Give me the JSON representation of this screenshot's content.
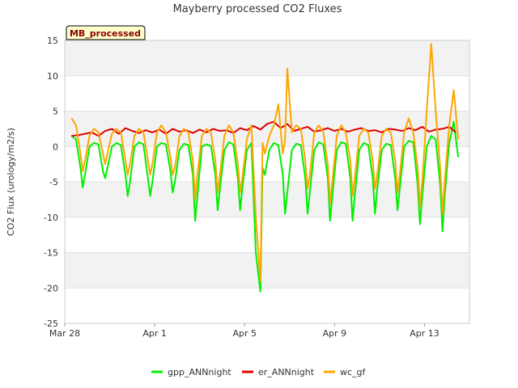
{
  "chart_data": {
    "type": "line",
    "title": "Mayberry processed CO2 Fluxes",
    "ylabel": "CO2 Flux (urology/m2/s)",
    "xlabel": "",
    "badge": "MB_processed",
    "xlim": [
      0,
      18
    ],
    "ylim": [
      -25,
      15
    ],
    "yticks": [
      -25,
      -20,
      -15,
      -10,
      -5,
      0,
      5,
      10,
      15
    ],
    "xticks": [
      {
        "day": 0,
        "label": "Mar 28"
      },
      {
        "day": 4,
        "label": "Apr 1"
      },
      {
        "day": 8,
        "label": "Apr 5"
      },
      {
        "day": 12,
        "label": "Apr 9"
      },
      {
        "day": 16,
        "label": "Apr 13"
      }
    ],
    "grid": true,
    "legend_position": "bottom",
    "x_units": "days since Mar 28",
    "series": [
      {
        "name": "gpp_ANNnight",
        "color": "#00ee00",
        "x": [
          0.3,
          0.5,
          0.7,
          0.8,
          0.9,
          1.1,
          1.3,
          1.5,
          1.7,
          1.8,
          1.9,
          2.1,
          2.3,
          2.5,
          2.7,
          2.8,
          2.9,
          3.1,
          3.3,
          3.5,
          3.7,
          3.8,
          3.9,
          4.1,
          4.3,
          4.5,
          4.7,
          4.8,
          4.9,
          5.1,
          5.3,
          5.5,
          5.7,
          5.8,
          5.9,
          6.1,
          6.3,
          6.5,
          6.7,
          6.8,
          6.9,
          7.1,
          7.3,
          7.5,
          7.7,
          7.8,
          7.9,
          8.1,
          8.3,
          8.5,
          8.7,
          8.8,
          8.9,
          9.1,
          9.3,
          9.5,
          9.7,
          9.8,
          9.9,
          10.1,
          10.3,
          10.5,
          10.7,
          10.8,
          10.9,
          11.1,
          11.3,
          11.5,
          11.7,
          11.8,
          11.9,
          12.1,
          12.3,
          12.5,
          12.7,
          12.8,
          12.9,
          13.1,
          13.3,
          13.5,
          13.7,
          13.8,
          13.9,
          14.1,
          14.3,
          14.5,
          14.7,
          14.8,
          14.9,
          15.1,
          15.3,
          15.5,
          15.7,
          15.8,
          15.9,
          16.1,
          16.3,
          16.5,
          16.7,
          16.8,
          16.9,
          17.1,
          17.3,
          17.5
        ],
        "y": [
          1.5,
          1.0,
          -3.0,
          -5.8,
          -4.0,
          0.0,
          0.5,
          0.3,
          -3.5,
          -4.5,
          -3.0,
          0.0,
          0.5,
          0.2,
          -4.0,
          -7.0,
          -5.0,
          0.0,
          0.6,
          0.3,
          -4.5,
          -7.0,
          -5.0,
          0.0,
          0.5,
          0.3,
          -3.5,
          -6.5,
          -5.0,
          -0.5,
          0.4,
          0.2,
          -4.0,
          -10.5,
          -7.0,
          0.0,
          0.3,
          0.1,
          -4.0,
          -9.0,
          -6.0,
          -0.5,
          0.6,
          0.3,
          -4.5,
          -9.0,
          -6.0,
          -0.5,
          0.5,
          -15.0,
          -20.5,
          -3.0,
          -4.0,
          -0.5,
          0.5,
          0.2,
          -4.0,
          -9.5,
          -6.5,
          -0.5,
          0.4,
          0.2,
          -4.5,
          -9.5,
          -6.5,
          -0.5,
          0.6,
          0.3,
          -4.5,
          -10.5,
          -7.0,
          -0.5,
          0.6,
          0.4,
          -4.5,
          -10.5,
          -7.0,
          -0.5,
          0.5,
          0.2,
          -4.5,
          -9.5,
          -6.0,
          -0.5,
          0.4,
          0.2,
          -4.5,
          -9.0,
          -6.0,
          0.0,
          0.8,
          0.6,
          -5.5,
          -11.0,
          -7.0,
          0.0,
          1.5,
          1.0,
          -5.5,
          -12.0,
          -7.0,
          0.5,
          3.5,
          -1.5
        ]
      },
      {
        "name": "er_ANNnight",
        "color": "#dd0000",
        "x": [
          0.3,
          0.6,
          0.9,
          1.2,
          1.5,
          1.8,
          2.1,
          2.4,
          2.7,
          3.0,
          3.3,
          3.6,
          3.9,
          4.2,
          4.5,
          4.8,
          5.1,
          5.4,
          5.7,
          6.0,
          6.3,
          6.6,
          6.9,
          7.2,
          7.5,
          7.8,
          8.1,
          8.4,
          8.7,
          9.0,
          9.3,
          9.6,
          9.9,
          10.2,
          10.5,
          10.8,
          11.1,
          11.4,
          11.7,
          12.0,
          12.3,
          12.6,
          12.9,
          13.2,
          13.5,
          13.8,
          14.1,
          14.4,
          14.7,
          15.0,
          15.3,
          15.6,
          15.9,
          16.2,
          16.5,
          16.8,
          17.1,
          17.4
        ],
        "y": [
          1.5,
          1.6,
          1.8,
          2.0,
          1.5,
          2.2,
          2.5,
          1.8,
          2.6,
          2.2,
          1.9,
          2.3,
          2.0,
          2.4,
          1.8,
          2.5,
          2.1,
          2.3,
          1.9,
          2.4,
          2.0,
          2.5,
          2.2,
          2.3,
          1.9,
          2.6,
          2.3,
          2.9,
          2.4,
          3.2,
          3.5,
          2.6,
          3.2,
          2.2,
          2.5,
          2.8,
          2.1,
          2.3,
          2.6,
          2.2,
          2.5,
          2.1,
          2.4,
          2.6,
          2.2,
          2.3,
          2.0,
          2.5,
          2.4,
          2.2,
          2.6,
          2.3,
          2.8,
          2.1,
          2.4,
          2.5,
          2.8,
          2.0
        ]
      },
      {
        "name": "wc_gf",
        "color": "#ffa500",
        "x": [
          0.3,
          0.5,
          0.7,
          0.8,
          0.9,
          1.1,
          1.3,
          1.5,
          1.7,
          1.8,
          1.9,
          2.1,
          2.3,
          2.5,
          2.7,
          2.8,
          2.9,
          3.1,
          3.3,
          3.5,
          3.7,
          3.8,
          3.9,
          4.1,
          4.3,
          4.5,
          4.7,
          4.8,
          4.9,
          5.1,
          5.3,
          5.5,
          5.7,
          5.8,
          5.9,
          6.1,
          6.3,
          6.5,
          6.7,
          6.8,
          6.9,
          7.1,
          7.3,
          7.5,
          7.7,
          7.8,
          7.9,
          8.1,
          8.3,
          8.5,
          8.7,
          8.8,
          8.9,
          9.1,
          9.3,
          9.5,
          9.7,
          9.8,
          9.9,
          10.1,
          10.3,
          10.5,
          10.7,
          10.8,
          10.9,
          11.1,
          11.3,
          11.5,
          11.7,
          11.8,
          11.9,
          12.1,
          12.3,
          12.5,
          12.7,
          12.8,
          12.9,
          13.1,
          13.3,
          13.5,
          13.7,
          13.8,
          13.9,
          14.1,
          14.3,
          14.5,
          14.7,
          14.8,
          14.9,
          15.1,
          15.3,
          15.5,
          15.7,
          15.8,
          15.9,
          16.1,
          16.3,
          16.5,
          16.7,
          16.8,
          16.9,
          17.1,
          17.3,
          17.5
        ],
        "y": [
          4.0,
          3.0,
          -1.0,
          -3.5,
          -2.0,
          1.5,
          2.5,
          2.0,
          -1.0,
          -2.5,
          -1.0,
          1.8,
          2.5,
          2.0,
          -2.0,
          -4.0,
          -2.5,
          1.5,
          2.5,
          2.0,
          -2.0,
          -4.0,
          -2.5,
          2.0,
          3.0,
          2.0,
          -1.5,
          -4.0,
          -3.0,
          1.5,
          2.5,
          2.0,
          -2.0,
          -7.5,
          -4.0,
          1.5,
          2.5,
          2.0,
          -2.0,
          -6.5,
          -4.0,
          1.5,
          3.0,
          2.0,
          -2.5,
          -6.5,
          -4.5,
          1.0,
          3.0,
          -10.0,
          -19.0,
          0.5,
          -1.0,
          1.5,
          3.0,
          6.0,
          -1.0,
          1.0,
          11.0,
          2.0,
          3.0,
          2.5,
          -2.0,
          -6.0,
          -4.0,
          2.0,
          3.0,
          2.0,
          -2.5,
          -8.0,
          -5.0,
          1.5,
          3.0,
          2.0,
          -2.0,
          -7.0,
          -4.5,
          1.5,
          2.5,
          2.0,
          -2.0,
          -6.0,
          -4.0,
          1.5,
          2.5,
          2.0,
          -2.0,
          -6.5,
          -4.0,
          2.0,
          4.0,
          2.0,
          -3.0,
          -8.5,
          -5.0,
          5.0,
          14.5,
          5.0,
          -3.0,
          -9.5,
          -5.0,
          3.0,
          8.0,
          1.0
        ]
      }
    ]
  }
}
